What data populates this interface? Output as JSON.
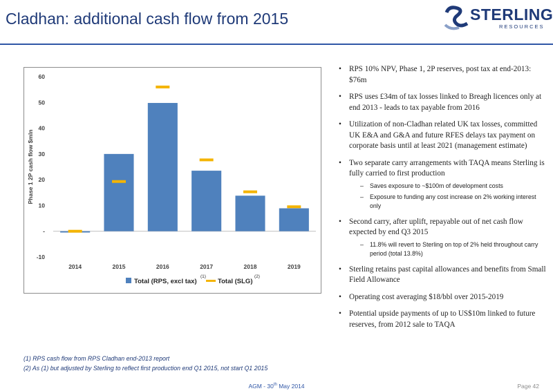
{
  "header": {
    "title": "Cladhan: additional cash flow from 2015",
    "logo_text": "STERLING",
    "logo_sub": "RESOURCES"
  },
  "chart_data": {
    "type": "bar",
    "categories": [
      "2014",
      "2015",
      "2016",
      "2017",
      "2018",
      "2019"
    ],
    "series": [
      {
        "name": "Total (RPS, excl tax)",
        "footnote": "(1)",
        "kind": "bar",
        "values": [
          -0.5,
          30,
          49.8,
          23.5,
          13.8,
          8.9
        ],
        "color": "#4f81bd"
      },
      {
        "name": "Total (SLG)",
        "footnote": "(2)",
        "kind": "marker",
        "values": [
          0,
          19.3,
          56,
          27.7,
          15.3,
          9.5
        ],
        "color": "#f4b400"
      }
    ],
    "ylabel": "Phase 1 2P cash flow $mln",
    "ylim": [
      -10,
      60
    ],
    "yticks": [
      "-10",
      "-",
      "10",
      "20",
      "30",
      "40",
      "50",
      "60"
    ],
    "grid": false,
    "legend": "bottom"
  },
  "bullets": [
    {
      "text": "RPS 10% NPV, Phase 1, 2P reserves, post tax at end-2013: $76m",
      "subs": []
    },
    {
      "text": "RPS uses £34m of tax losses linked to Breagh licences only at end 2013 - leads to tax payable from 2016",
      "subs": []
    },
    {
      "text": "Utilization of non-Cladhan related UK tax losses, committed UK E&A and G&A and future RFES delays tax payment on corporate basis until at least 2021 (management estimate)",
      "subs": []
    },
    {
      "text": "Two separate carry arrangements with TAQA means Sterling is fully carried to first production",
      "subs": [
        "Saves exposure to ~$100m of development costs",
        "Exposure to funding any cost increase on 2% working interest only"
      ]
    },
    {
      "text": "Second carry, after uplift, repayable out of net cash flow expected by end Q3 2015",
      "subs": [
        "11.8% will revert to Sterling on top of 2% held throughout carry period (total 13.8%)"
      ]
    },
    {
      "text": "Sterling retains past capital allowances and benefits from Small Field Allowance",
      "subs": []
    },
    {
      "text": "Operating cost averaging $18/bbl over 2015-2019",
      "subs": []
    },
    {
      "text": "Potential upside payments of up to US$10m linked to future reserves, from 2012 sale to TAQA",
      "subs": []
    }
  ],
  "footnotes": [
    "(1)  RPS cash flow from RPS Cladhan end-2013 report",
    "(2)  As (1) but adjusted by Sterling to reflect first production end Q1 2015, not start Q1 2015"
  ],
  "footer": {
    "event_prefix": "AGM - 30",
    "event_sup": "th",
    "event_suffix": " May 2014",
    "page": "Page 42"
  }
}
